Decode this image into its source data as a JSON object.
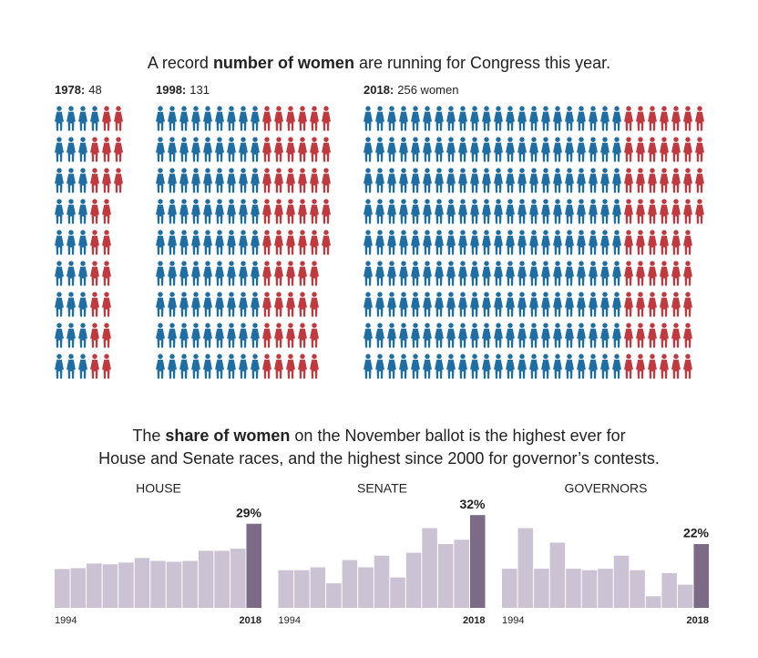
{
  "heading": [
    "A record ",
    "number of women",
    " are running for Congress this year."
  ],
  "section_heading": [
    "The ",
    "share of women",
    " on the November ballot is the highest ever for",
    "House and Senate races, and the highest since 2000 for governor’s contests."
  ],
  "chart_data": [
    {
      "type": "pictogram",
      "categories": [
        "1978:",
        "1998:",
        "2018:"
      ],
      "values": [
        48,
        131,
        256
      ],
      "value_labels": [
        "48",
        "131",
        "256 women"
      ],
      "rows": 9,
      "series": [
        {
          "color": "#1f6ea3",
          "values": [
            28,
            81,
            198
          ]
        },
        {
          "color": "#c0393f",
          "values": [
            20,
            50,
            58
          ]
        }
      ]
    },
    {
      "type": "bar",
      "title": "HOUSE",
      "categories": [
        "1994",
        null,
        null,
        null,
        null,
        null,
        null,
        null,
        null,
        null,
        null,
        null,
        "2018"
      ],
      "values": [
        13.4,
        13.7,
        15.3,
        15,
        15.6,
        17.2,
        16.2,
        15.9,
        16.2,
        19.7,
        19.7,
        20.4,
        29
      ],
      "value_labels": [
        null,
        null,
        null,
        null,
        null,
        null,
        null,
        null,
        null,
        null,
        null,
        null,
        "29%"
      ],
      "color": "#cbc2d3",
      "highlight_color": "#7b6b86",
      "ylim": [
        0,
        33
      ]
    },
    {
      "type": "bar",
      "title": "SENATE",
      "categories": [
        "1994",
        null,
        null,
        null,
        null,
        null,
        null,
        null,
        null,
        null,
        null,
        null,
        "2018"
      ],
      "values": [
        13,
        13,
        14,
        8.5,
        16.5,
        14,
        18,
        10.5,
        19,
        27.5,
        22,
        23.5,
        32
      ],
      "value_labels": [
        null,
        null,
        null,
        null,
        null,
        null,
        null,
        null,
        null,
        null,
        null,
        null,
        "32%"
      ],
      "color": "#cbc2d3",
      "highlight_color": "#7b6b86",
      "ylim": [
        0,
        33
      ]
    },
    {
      "type": "bar",
      "title": "GOVERNORS",
      "categories": [
        "1994",
        null,
        null,
        null,
        null,
        null,
        null,
        null,
        null,
        null,
        null,
        null,
        "2018"
      ],
      "values": [
        13.5,
        27.5,
        13.5,
        22.5,
        13.5,
        13,
        13.5,
        18,
        13,
        4,
        12,
        8,
        22
      ],
      "value_labels": [
        null,
        null,
        null,
        null,
        null,
        null,
        null,
        null,
        null,
        null,
        null,
        null,
        "22%"
      ],
      "color": "#cbc2d3",
      "highlight_color": "#7b6b86",
      "ylim": [
        0,
        33
      ]
    }
  ]
}
